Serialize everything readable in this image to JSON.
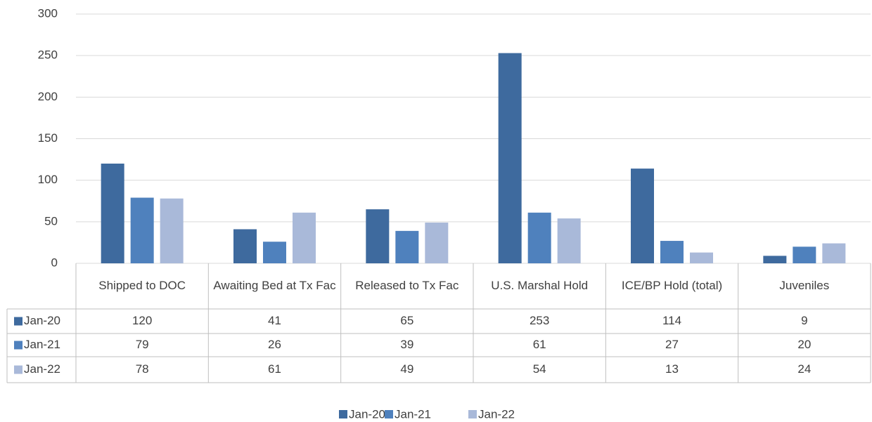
{
  "chart_data": {
    "type": "bar",
    "categories": [
      "Shipped to DOC",
      "Awaiting Bed at Tx Fac",
      "Released to Tx Fac",
      "U.S. Marshal Hold",
      "ICE/BP Hold (total)",
      "Juveniles"
    ],
    "series": [
      {
        "name": "Jan-20",
        "color": "#3e6a9e",
        "values": [
          120,
          41,
          65,
          253,
          114,
          9
        ]
      },
      {
        "name": "Jan-21",
        "color": "#4f81bd",
        "values": [
          79,
          26,
          39,
          61,
          27,
          20
        ]
      },
      {
        "name": "Jan-22",
        "color": "#a9b9d9",
        "values": [
          78,
          61,
          49,
          54,
          13,
          24
        ]
      }
    ],
    "ylim": [
      0,
      300
    ],
    "yticks": [
      0,
      50,
      100,
      150,
      200,
      250,
      300
    ],
    "grid": true,
    "legend": "bottom",
    "data_table": true
  }
}
